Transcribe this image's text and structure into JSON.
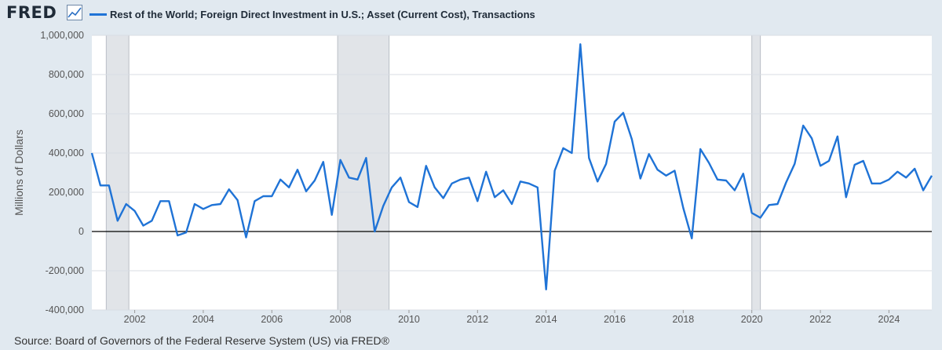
{
  "header": {
    "logo": "FRED",
    "legend_label": "Rest of the World; Foreign Direct Investment in U.S.; Asset (Current Cost), Transactions",
    "legend_color": "#1f73d6"
  },
  "footer": {
    "source": "Source: Board of Governors of the Federal Reserve System (US) via FRED®"
  },
  "chart_data": {
    "type": "line",
    "ylabel": "Millions of Dollars",
    "xlabel": "",
    "xlim": [
      2000.75,
      2025.25
    ],
    "ylim": [
      -400000,
      1000000
    ],
    "y_ticks": [
      -400000,
      -200000,
      0,
      200000,
      400000,
      600000,
      800000,
      1000000
    ],
    "y_tick_labels": [
      "-400,000",
      "-200,000",
      "0",
      "200,000",
      "400,000",
      "600,000",
      "800,000",
      "1,000,000"
    ],
    "x_ticks": [
      2002,
      2004,
      2006,
      2008,
      2010,
      2012,
      2014,
      2016,
      2018,
      2020,
      2022,
      2024
    ],
    "x_tick_labels": [
      "2002",
      "2004",
      "2006",
      "2008",
      "2010",
      "2012",
      "2014",
      "2016",
      "2018",
      "2020",
      "2022",
      "2024"
    ],
    "grid": true,
    "zero_line": true,
    "recessions": [
      [
        2001.17,
        2001.83
      ],
      [
        2007.92,
        2009.42
      ],
      [
        2020.0,
        2020.25
      ]
    ],
    "series": [
      {
        "name": "Rest of the World; Foreign Direct Investment in U.S.; Asset (Current Cost), Transactions",
        "color": "#1f73d6",
        "x": [
          2000.75,
          2001.0,
          2001.25,
          2001.5,
          2001.75,
          2002.0,
          2002.25,
          2002.5,
          2002.75,
          2003.0,
          2003.25,
          2003.5,
          2003.75,
          2004.0,
          2004.25,
          2004.5,
          2004.75,
          2005.0,
          2005.25,
          2005.5,
          2005.75,
          2006.0,
          2006.25,
          2006.5,
          2006.75,
          2007.0,
          2007.25,
          2007.5,
          2007.75,
          2008.0,
          2008.25,
          2008.5,
          2008.75,
          2009.0,
          2009.25,
          2009.5,
          2009.75,
          2010.0,
          2010.25,
          2010.5,
          2010.75,
          2011.0,
          2011.25,
          2011.5,
          2011.75,
          2012.0,
          2012.25,
          2012.5,
          2012.75,
          2013.0,
          2013.25,
          2013.5,
          2013.75,
          2014.0,
          2014.25,
          2014.5,
          2014.75,
          2015.0,
          2015.25,
          2015.5,
          2015.75,
          2016.0,
          2016.25,
          2016.5,
          2016.75,
          2017.0,
          2017.25,
          2017.5,
          2017.75,
          2018.0,
          2018.25,
          2018.5,
          2018.75,
          2019.0,
          2019.25,
          2019.5,
          2019.75,
          2020.0,
          2020.25,
          2020.5,
          2020.75,
          2021.0,
          2021.25,
          2021.5,
          2021.75,
          2022.0,
          2022.25,
          2022.5,
          2022.75,
          2023.0,
          2023.25,
          2023.5,
          2023.75,
          2024.0,
          2024.25,
          2024.5,
          2024.75,
          2025.0,
          2025.25
        ],
        "y": [
          400000,
          235000,
          235000,
          55000,
          140000,
          105000,
          30000,
          55000,
          155000,
          155000,
          -20000,
          -5000,
          140000,
          115000,
          135000,
          140000,
          215000,
          160000,
          -30000,
          155000,
          180000,
          180000,
          265000,
          225000,
          315000,
          205000,
          260000,
          355000,
          85000,
          365000,
          275000,
          265000,
          375000,
          0,
          130000,
          225000,
          275000,
          150000,
          125000,
          335000,
          225000,
          170000,
          245000,
          265000,
          275000,
          155000,
          305000,
          175000,
          210000,
          140000,
          255000,
          245000,
          225000,
          -295000,
          310000,
          425000,
          400000,
          955000,
          375000,
          255000,
          345000,
          560000,
          605000,
          470000,
          270000,
          395000,
          315000,
          285000,
          310000,
          120000,
          -35000,
          420000,
          350000,
          265000,
          260000,
          210000,
          295000,
          95000,
          70000,
          135000,
          140000,
          250000,
          345000,
          540000,
          475000,
          335000,
          360000,
          485000,
          175000,
          340000,
          360000,
          245000,
          245000,
          265000,
          305000,
          275000,
          320000,
          210000,
          285000
        ]
      }
    ]
  }
}
